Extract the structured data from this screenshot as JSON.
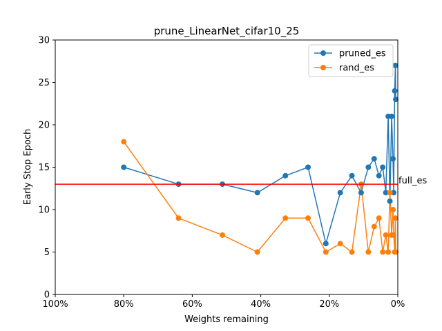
{
  "chart_data": {
    "type": "line",
    "title": "prune_LinearNet_cifar10_25",
    "xlabel": "Weights remaining",
    "ylabel": "Early Stop Epoch",
    "xlim": [
      100,
      0
    ],
    "ylim": [
      0,
      30
    ],
    "x_ticks": [
      {
        "value": 100,
        "label": "100%"
      },
      {
        "value": 80,
        "label": "80%"
      },
      {
        "value": 60,
        "label": "60%"
      },
      {
        "value": 40,
        "label": "40%"
      },
      {
        "value": 20,
        "label": "20%"
      },
      {
        "value": 0,
        "label": "0%"
      }
    ],
    "y_ticks": [
      0,
      5,
      10,
      15,
      20,
      25,
      30
    ],
    "legend_position": "top-right",
    "series": [
      {
        "name": "pruned_es",
        "color": "#1f77b4",
        "x": [
          80,
          64,
          51.2,
          41,
          32.8,
          26.2,
          21,
          16.8,
          13.4,
          10.7,
          8.6,
          6.9,
          5.5,
          4.4,
          3.5,
          2.8,
          2.3,
          1.8,
          1.4,
          1.2,
          0.9,
          0.7,
          0.6
        ],
        "y": [
          15,
          13,
          13,
          12,
          14,
          15,
          6,
          12,
          14,
          12,
          15,
          16,
          14,
          15,
          12,
          21,
          11,
          21,
          16,
          12,
          24,
          27,
          23
        ]
      },
      {
        "name": "rand_es",
        "color": "#ff7f0e",
        "x": [
          80,
          64,
          51.2,
          41,
          32.8,
          26.2,
          21,
          16.8,
          13.4,
          10.7,
          8.6,
          6.9,
          5.5,
          4.4,
          3.5,
          2.8,
          2.3,
          1.8,
          1.4,
          1.2,
          0.9,
          0.7,
          0.6
        ],
        "y": [
          18,
          9,
          7,
          5,
          9,
          9,
          5,
          6,
          5,
          13,
          5,
          8,
          9,
          5,
          7,
          5,
          12,
          7,
          10,
          7,
          5,
          9,
          5
        ]
      }
    ],
    "reference_line": {
      "label": "full_es",
      "y": 13,
      "color": "#ff0000"
    }
  }
}
